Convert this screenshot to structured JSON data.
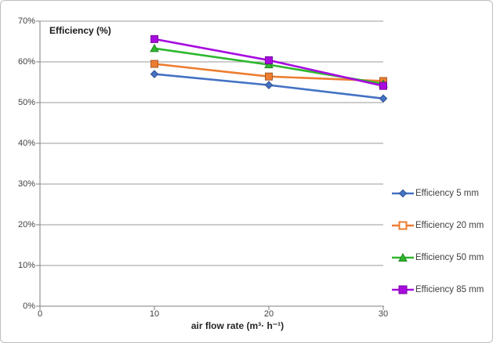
{
  "frame": {
    "background": "#ffffff",
    "border_color": "#bdbdbd",
    "gridline_color": "#9a9a9a",
    "axis_color": "#7f7f7f"
  },
  "chart_data": {
    "type": "line",
    "title": "Efficiency (%)",
    "xlabel": "air flow rate  (m³· h⁻¹)",
    "ylabel": "",
    "x": [
      10,
      20,
      30
    ],
    "xlim": [
      0,
      30
    ],
    "ylim": [
      0,
      70
    ],
    "x_tick_values": [
      0,
      10,
      20,
      30
    ],
    "x_tick_labels": [
      "0",
      "10",
      "20",
      "30"
    ],
    "y_tick_values": [
      0,
      10,
      20,
      30,
      40,
      50,
      60,
      70
    ],
    "y_tick_labels": [
      "0%",
      "10%",
      "20%",
      "30%",
      "40%",
      "50%",
      "60%",
      "70%"
    ],
    "grid": true,
    "legend_position": "right",
    "series": [
      {
        "name": "Efficiency 5 mm",
        "color": "#4472C4",
        "marker": "diamond",
        "values": [
          57.0,
          54.3,
          51.0
        ]
      },
      {
        "name": "Efficiency 20 mm",
        "color": "#ED7D31",
        "marker": "square-open",
        "values": [
          59.5,
          56.4,
          55.3
        ]
      },
      {
        "name": "Efficiency 50 mm",
        "color": "#2DB72D",
        "marker": "triangle",
        "values": [
          63.3,
          59.3,
          54.6
        ]
      },
      {
        "name": "Efficiency 85 mm",
        "color": "#A80AE0",
        "marker": "square",
        "values": [
          65.6,
          60.4,
          54.1
        ]
      }
    ]
  }
}
